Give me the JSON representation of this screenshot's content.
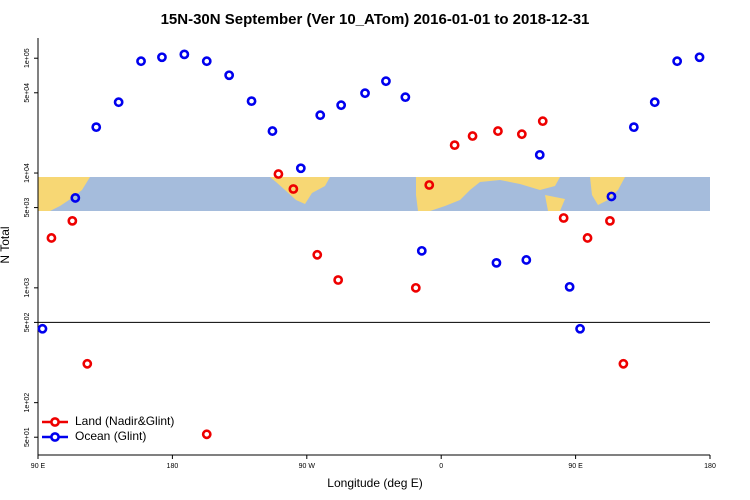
{
  "chart_data": {
    "type": "scatter",
    "title": "15N-30N September (Ver 10_ATom)   2016-01-01 to 2018-12-31",
    "x_label": "Longitude (deg E)",
    "y_label": "N Total",
    "log_y": true,
    "xlim": [
      90,
      540
    ],
    "ylim": [
      35,
      150000
    ],
    "xticks": [
      {
        "value": 90,
        "label": "90 E"
      },
      180,
      {
        "value": 270,
        "label": "90 W"
      },
      {
        "value": 360,
        "label": "0"
      },
      {
        "value": 450,
        "label": "90 E"
      },
      {
        "value": 540,
        "label": "180"
      }
    ],
    "yticks": [
      {
        "value": 50,
        "label": "5e+01"
      },
      {
        "value": 100,
        "label": "1e+02"
      },
      {
        "value": 500,
        "label": "5e+02"
      },
      {
        "value": 1000,
        "label": "1e+03"
      },
      {
        "value": 5000,
        "label": "5e+03"
      },
      {
        "value": 10000,
        "label": "1e+04"
      },
      {
        "value": 50000,
        "label": "5e+04"
      },
      {
        "value": 100000,
        "label": "1e+05"
      }
    ],
    "hline": 500,
    "legend": "bottom-left",
    "series": [
      {
        "name": "Land (Nadir&Glint)",
        "color": "#ee0000",
        "x": [
          99,
          113,
          123,
          203,
          251,
          261,
          277,
          291,
          343,
          352,
          369,
          381,
          398,
          414,
          428,
          442,
          458,
          473,
          482
        ],
        "values": [
          2720,
          3830,
          218,
          53,
          9800,
          7260,
          1940,
          1170,
          1000,
          7870,
          17500,
          21000,
          23200,
          21800,
          28300,
          4060,
          2720,
          3830,
          218
        ]
      },
      {
        "name": "Ocean (Glint)",
        "color": "#0000ee",
        "x": [
          93,
          115,
          129,
          144,
          159,
          173,
          188,
          203,
          218,
          233,
          247,
          266,
          279,
          293,
          309,
          323,
          336,
          347,
          397,
          417,
          426,
          446,
          453,
          474,
          489,
          503,
          518,
          533
        ],
        "values": [
          440,
          6070,
          25100,
          41400,
          94200,
          102000,
          108000,
          94200,
          71100,
          42300,
          23200,
          11000,
          31900,
          39000,
          49600,
          63100,
          45800,
          2100,
          1650,
          1750,
          14400,
          1020,
          440,
          6250,
          25100,
          41400,
          94200,
          102000
        ]
      }
    ]
  }
}
